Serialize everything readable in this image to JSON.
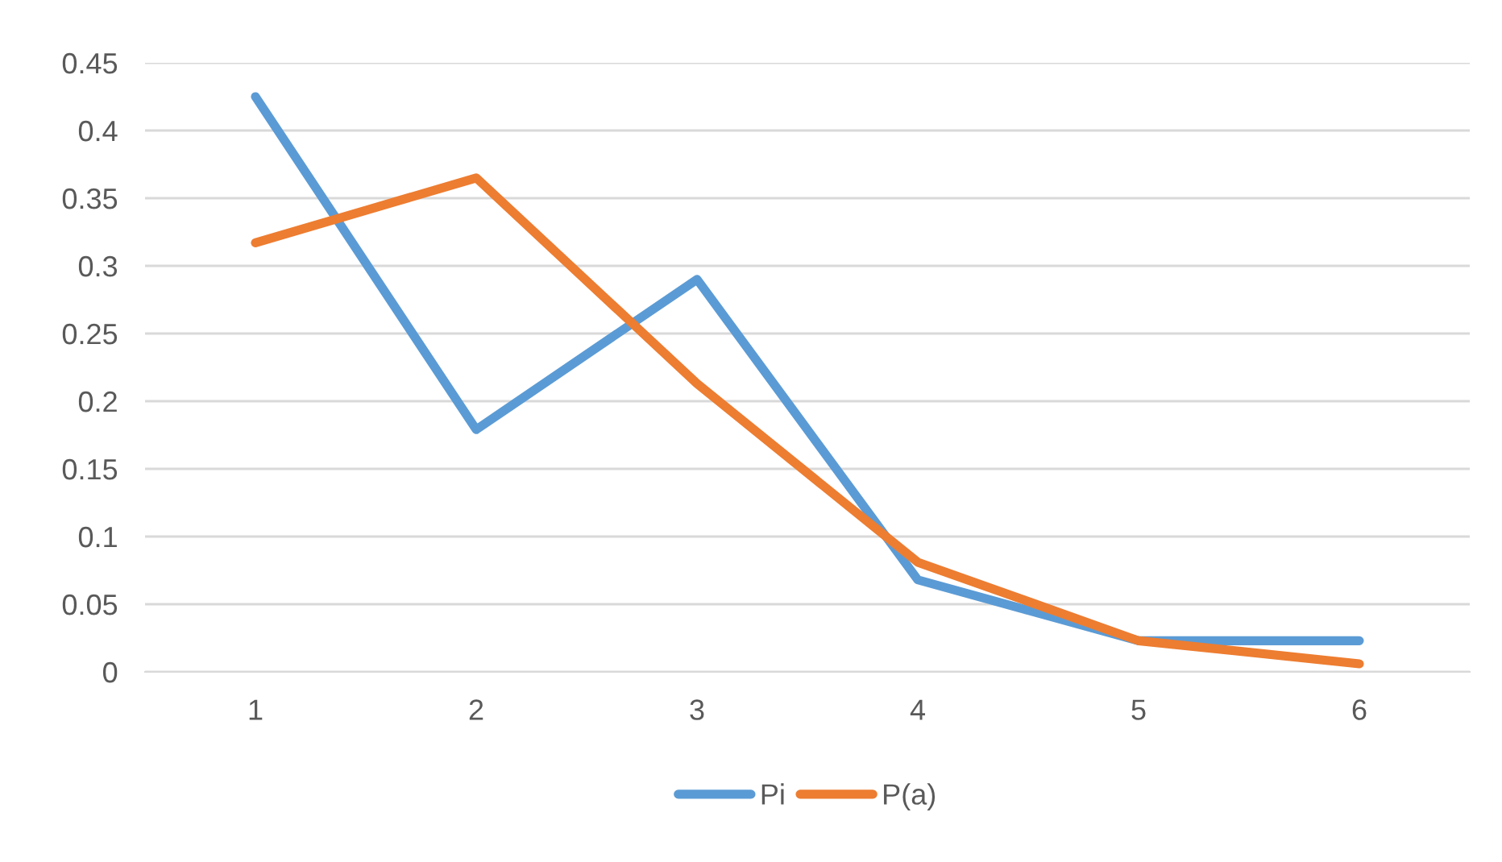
{
  "chart_data": {
    "type": "line",
    "categories": [
      "1",
      "2",
      "3",
      "4",
      "5",
      "6"
    ],
    "series": [
      {
        "name": "Pi",
        "color": "#5b9bd5",
        "values": [
          0.425,
          0.179,
          0.29,
          0.068,
          0.023,
          0.023
        ]
      },
      {
        "name": "P(a)",
        "color": "#ed7d31",
        "values": [
          0.317,
          0.365,
          0.213,
          0.081,
          0.023,
          0.006
        ]
      }
    ],
    "ylim": [
      0,
      0.45
    ],
    "yticks": [
      0,
      0.05,
      0.1,
      0.15,
      0.2,
      0.25,
      0.3,
      0.35,
      0.4,
      0.45
    ],
    "grid": "y",
    "legend": "bottom",
    "marker": "none",
    "line_style": "solid"
  }
}
